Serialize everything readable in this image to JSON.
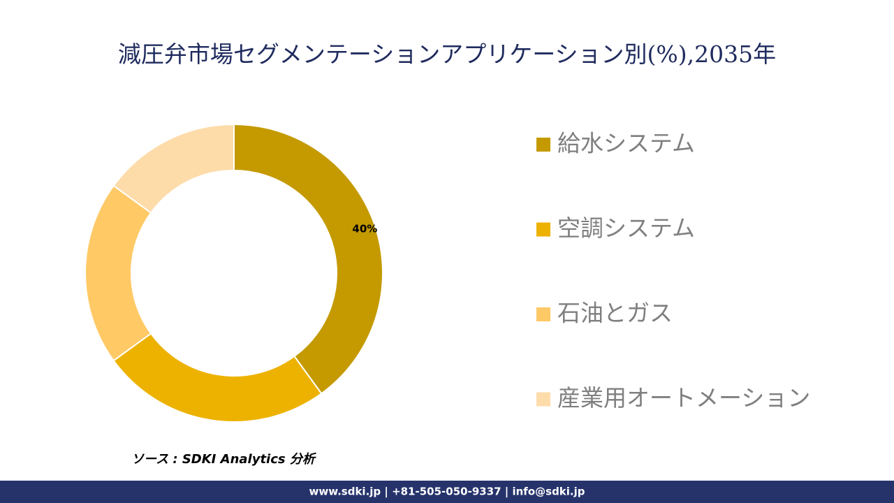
{
  "chart_data": {
    "type": "donut",
    "title": "減圧弁市場セグメンテーションアプリケーション別(%),2035年",
    "categories": [
      "給水システム",
      "空調システム",
      "石油とガス",
      "産業用オートメーション"
    ],
    "values": [
      40,
      25,
      20,
      15
    ],
    "value_labels": [
      "40%",
      null,
      null,
      null
    ],
    "colors": [
      "#c49a00",
      "#edb200",
      "#ffc966",
      "#fddcaa"
    ],
    "legend": "right",
    "source": "ソース : SDKI Analytics 分析"
  },
  "footer": "www.sdki.jp | +81-505-050-9337 | info@sdki.jp"
}
